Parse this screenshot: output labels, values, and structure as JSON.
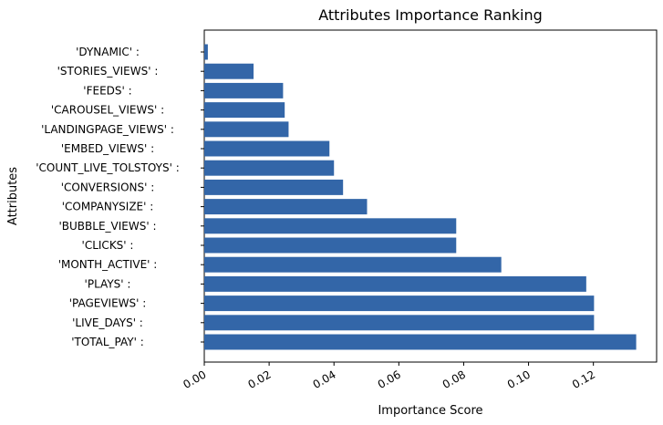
{
  "chart_data": {
    "type": "bar",
    "orientation": "horizontal",
    "title": "Attributes Importance Ranking",
    "xlabel": "Importance Score",
    "ylabel": "Attributes",
    "xlim": [
      0,
      0.1395
    ],
    "xticks": [
      0.0,
      0.02,
      0.04,
      0.06,
      0.08,
      0.1,
      0.12
    ],
    "xtick_labels": [
      "0.00",
      "0.02",
      "0.04",
      "0.06",
      "0.08",
      "0.10",
      "0.12"
    ],
    "categories": [
      "'TOTAL_PAY' :",
      "'LIVE_DAYS' :",
      "'PAGEVIEWS' :",
      "'PLAYS' :",
      "'MONTH_ACTIVE' :",
      "'CLICKS' :",
      "'BUBBLE_VIEWS' :",
      "'COMPANYSIZE' :",
      "'CONVERSIONS' :",
      "'COUNT_LIVE_TOLSTOYS' :",
      "'EMBED_VIEWS' :",
      "'LANDINGPAGE_VIEWS' :",
      "'CAROUSEL_VIEWS' :",
      "'FEEDS' :",
      "'STORIES_VIEWS' :",
      "'DYNAMIC' :"
    ],
    "values": [
      0.1332,
      0.1202,
      0.1202,
      0.1178,
      0.0916,
      0.0777,
      0.0777,
      0.0502,
      0.0428,
      0.04,
      0.0386,
      0.026,
      0.0248,
      0.0243,
      0.0152,
      0.0011
    ],
    "bar_color": "#3366a8",
    "grid": false,
    "legend": "none"
  }
}
